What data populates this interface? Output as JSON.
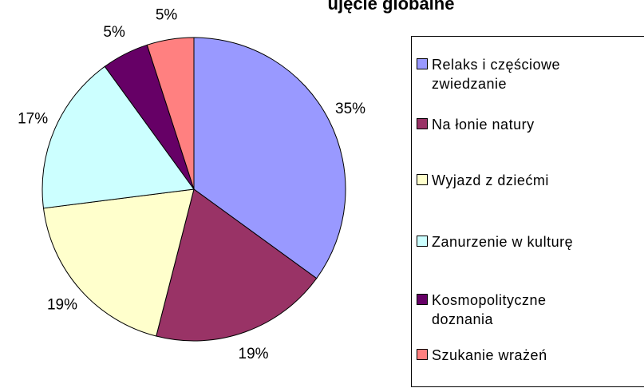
{
  "chart_data": {
    "type": "pie",
    "title": "ujęcie globalne",
    "categories": [
      "Relaks i częściowe zwiedzanie",
      "Na łonie natury",
      "Wyjazd z dziećmi",
      "Zanurzenie w kulturę",
      "Kosmopolityczne doznania",
      "Szukanie wrażeń"
    ],
    "values": [
      35,
      19,
      19,
      17,
      5,
      5
    ],
    "value_labels": [
      "35%",
      "19%",
      "19%",
      "17%",
      "5%",
      "5%"
    ],
    "colors": [
      "#9999ff",
      "#993366",
      "#ffffcc",
      "#ccffff",
      "#660066",
      "#ff8080"
    ],
    "legend": "right"
  }
}
